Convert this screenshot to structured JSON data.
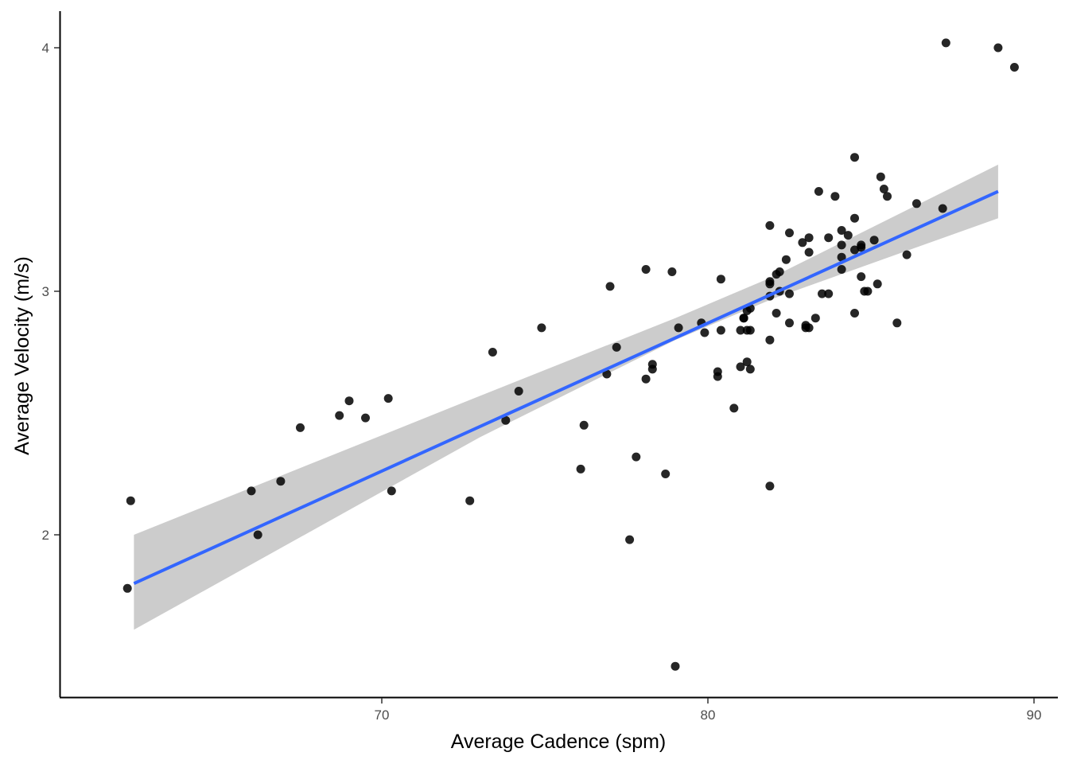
{
  "chart_data": {
    "type": "scatter",
    "title": "",
    "xlabel": "Average Cadence (spm)",
    "ylabel": "Average Velocity (m/s)",
    "xlim": [
      61.2,
      90.5
    ],
    "ylim": [
      1.35,
      4.15
    ],
    "x_ticks": [
      70,
      80,
      90
    ],
    "y_ticks": [
      2,
      3,
      4
    ],
    "x_tick_labels": [
      "70",
      "80",
      "90"
    ],
    "y_tick_labels": [
      "2",
      "3",
      "4"
    ],
    "grid": false,
    "legend": "none",
    "colors": {
      "points": "#000000",
      "fit_line": "#3366FF",
      "ribbon": "#CCCCCC",
      "axis": "#000000",
      "tick_text": "#4D4D4D"
    },
    "fit": {
      "method": "linear",
      "x_range": [
        62.4,
        88.9
      ],
      "line": [
        [
          62.4,
          1.8
        ],
        [
          88.9,
          3.41
        ]
      ],
      "ci_lower": [
        [
          62.4,
          1.61
        ],
        [
          73.0,
          2.4
        ],
        [
          79.0,
          2.8
        ],
        [
          82.0,
          2.97
        ],
        [
          88.9,
          3.3
        ]
      ],
      "ci_upper": [
        [
          62.4,
          2.0
        ],
        [
          73.0,
          2.57
        ],
        [
          79.0,
          2.89
        ],
        [
          82.0,
          3.06
        ],
        [
          88.9,
          3.52
        ]
      ]
    },
    "points": [
      [
        62.3,
        2.14
      ],
      [
        62.2,
        1.78
      ],
      [
        66.0,
        2.18
      ],
      [
        66.2,
        2.0
      ],
      [
        66.9,
        2.22
      ],
      [
        67.5,
        2.44
      ],
      [
        68.7,
        2.49
      ],
      [
        69.0,
        2.55
      ],
      [
        69.5,
        2.48
      ],
      [
        70.2,
        2.56
      ],
      [
        70.3,
        2.18
      ],
      [
        72.7,
        2.14
      ],
      [
        73.4,
        2.75
      ],
      [
        73.8,
        2.47
      ],
      [
        74.2,
        2.59
      ],
      [
        74.9,
        2.85
      ],
      [
        76.1,
        2.27
      ],
      [
        76.2,
        2.45
      ],
      [
        76.9,
        2.66
      ],
      [
        77.0,
        3.02
      ],
      [
        77.2,
        2.77
      ],
      [
        77.6,
        1.98
      ],
      [
        77.8,
        2.32
      ],
      [
        78.1,
        3.09
      ],
      [
        78.1,
        2.64
      ],
      [
        78.3,
        2.7
      ],
      [
        78.3,
        2.68
      ],
      [
        78.7,
        2.25
      ],
      [
        78.9,
        3.08
      ],
      [
        79.0,
        1.46
      ],
      [
        79.1,
        2.85
      ],
      [
        79.8,
        2.87
      ],
      [
        79.9,
        2.83
      ],
      [
        80.3,
        2.67
      ],
      [
        80.3,
        2.65
      ],
      [
        80.4,
        2.84
      ],
      [
        80.4,
        3.05
      ],
      [
        80.8,
        2.52
      ],
      [
        81.0,
        2.69
      ],
      [
        81.0,
        2.84
      ],
      [
        81.1,
        2.89
      ],
      [
        81.1,
        2.89
      ],
      [
        81.2,
        2.71
      ],
      [
        81.2,
        2.84
      ],
      [
        81.2,
        2.92
      ],
      [
        81.3,
        2.68
      ],
      [
        81.3,
        2.93
      ],
      [
        81.3,
        2.84
      ],
      [
        81.9,
        3.27
      ],
      [
        81.9,
        3.04
      ],
      [
        81.9,
        2.98
      ],
      [
        81.9,
        3.03
      ],
      [
        81.9,
        2.8
      ],
      [
        81.9,
        2.2
      ],
      [
        82.1,
        2.91
      ],
      [
        82.1,
        3.07
      ],
      [
        82.2,
        3.08
      ],
      [
        82.2,
        3.0
      ],
      [
        82.4,
        3.13
      ],
      [
        82.5,
        2.87
      ],
      [
        82.5,
        3.24
      ],
      [
        82.5,
        2.99
      ],
      [
        82.9,
        3.2
      ],
      [
        83.0,
        2.86
      ],
      [
        83.0,
        2.85
      ],
      [
        83.1,
        3.22
      ],
      [
        83.1,
        3.16
      ],
      [
        83.1,
        2.85
      ],
      [
        83.3,
        2.89
      ],
      [
        83.4,
        3.41
      ],
      [
        83.5,
        2.99
      ],
      [
        83.7,
        2.99
      ],
      [
        83.7,
        3.22
      ],
      [
        83.9,
        3.39
      ],
      [
        84.1,
        3.25
      ],
      [
        84.1,
        3.09
      ],
      [
        84.1,
        3.14
      ],
      [
        84.1,
        3.19
      ],
      [
        84.3,
        3.23
      ],
      [
        84.5,
        3.3
      ],
      [
        84.5,
        3.17
      ],
      [
        84.5,
        2.91
      ],
      [
        84.5,
        3.55
      ],
      [
        84.7,
        3.19
      ],
      [
        84.7,
        3.06
      ],
      [
        84.7,
        3.18
      ],
      [
        84.8,
        3.0
      ],
      [
        84.9,
        3.0
      ],
      [
        85.1,
        3.21
      ],
      [
        85.2,
        3.03
      ],
      [
        85.3,
        3.47
      ],
      [
        85.4,
        3.42
      ],
      [
        85.5,
        3.39
      ],
      [
        85.8,
        2.87
      ],
      [
        86.1,
        3.15
      ],
      [
        86.4,
        3.36
      ],
      [
        87.2,
        3.34
      ],
      [
        87.3,
        4.02
      ],
      [
        88.9,
        4.0
      ],
      [
        89.4,
        3.92
      ]
    ]
  }
}
